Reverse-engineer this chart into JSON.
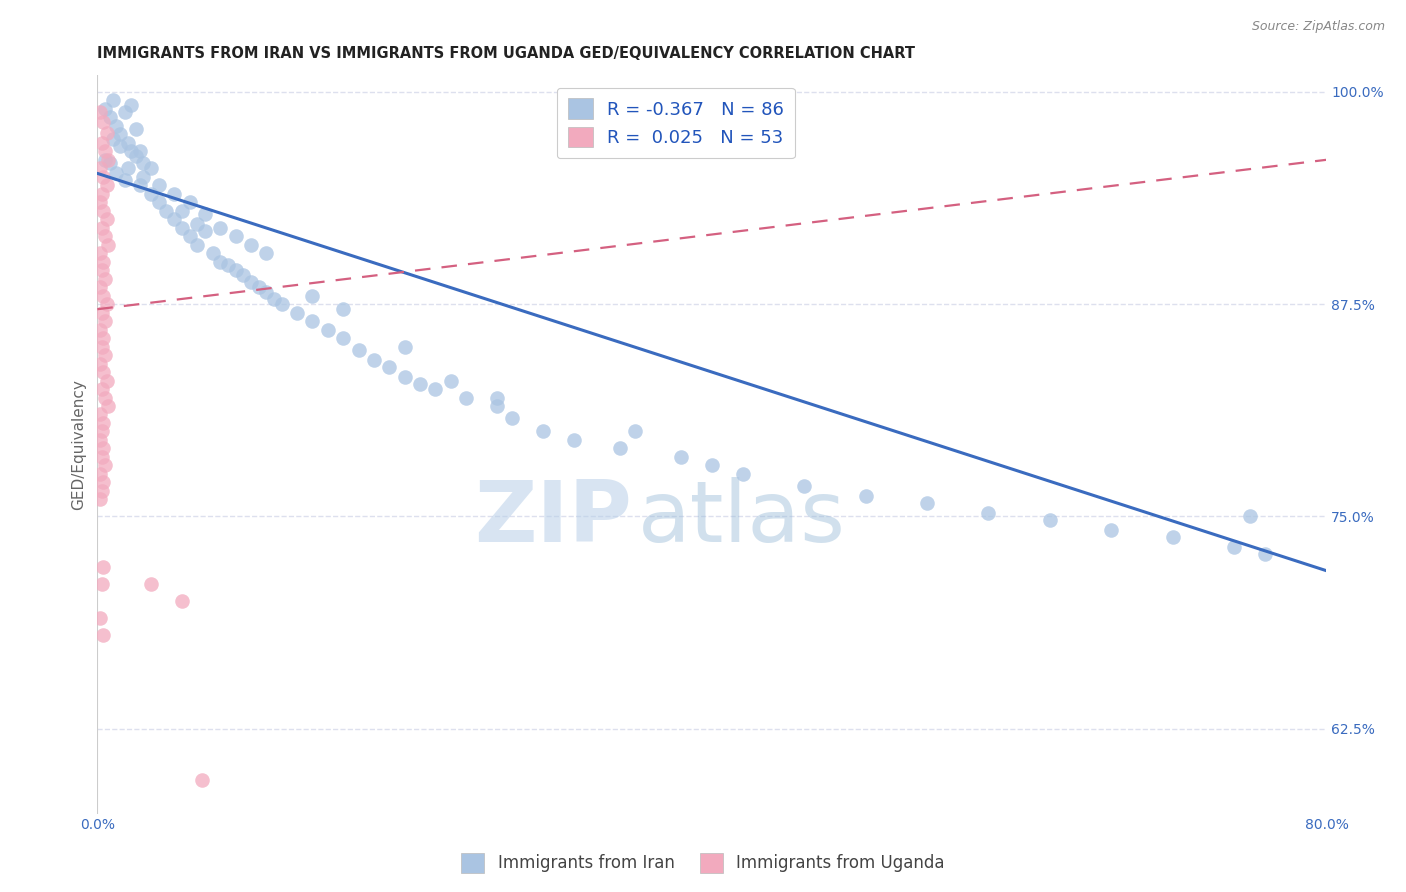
{
  "title": "IMMIGRANTS FROM IRAN VS IMMIGRANTS FROM UGANDA GED/EQUIVALENCY CORRELATION CHART",
  "source": "Source: ZipAtlas.com",
  "ylabel": "GED/Equivalency",
  "xlim": [
    0.0,
    0.8
  ],
  "ylim": [
    0.575,
    1.01
  ],
  "xticks": [
    0.0,
    0.1,
    0.2,
    0.3,
    0.4,
    0.5,
    0.6,
    0.7,
    0.8
  ],
  "yticks": [
    0.625,
    0.75,
    0.875,
    1.0
  ],
  "yticklabels": [
    "62.5%",
    "75.0%",
    "87.5%",
    "100.0%"
  ],
  "blue_color": "#aac4e2",
  "pink_color": "#f2aabe",
  "blue_line_color": "#3a6bbf",
  "pink_line_color": "#d46080",
  "legend_R_iran": "-0.367",
  "legend_N_iran": "86",
  "legend_R_uganda": "0.025",
  "legend_N_uganda": "53",
  "watermark_zip": "ZIP",
  "watermark_atlas": "atlas",
  "iran_x": [
    0.005,
    0.008,
    0.01,
    0.012,
    0.015,
    0.018,
    0.02,
    0.022,
    0.025,
    0.028,
    0.005,
    0.01,
    0.015,
    0.02,
    0.025,
    0.008,
    0.012,
    0.018,
    0.022,
    0.028,
    0.03,
    0.035,
    0.04,
    0.035,
    0.03,
    0.045,
    0.05,
    0.04,
    0.055,
    0.06,
    0.05,
    0.065,
    0.07,
    0.06,
    0.055,
    0.075,
    0.08,
    0.07,
    0.065,
    0.085,
    0.09,
    0.08,
    0.095,
    0.1,
    0.09,
    0.105,
    0.11,
    0.1,
    0.115,
    0.12,
    0.11,
    0.13,
    0.14,
    0.15,
    0.16,
    0.17,
    0.18,
    0.19,
    0.2,
    0.21,
    0.14,
    0.16,
    0.22,
    0.24,
    0.26,
    0.2,
    0.23,
    0.27,
    0.29,
    0.31,
    0.26,
    0.34,
    0.38,
    0.4,
    0.35,
    0.42,
    0.46,
    0.5,
    0.54,
    0.58,
    0.62,
    0.66,
    0.7,
    0.74,
    0.76,
    0.75
  ],
  "iran_y": [
    0.99,
    0.985,
    0.995,
    0.98,
    0.975,
    0.988,
    0.97,
    0.992,
    0.978,
    0.965,
    0.96,
    0.972,
    0.968,
    0.955,
    0.962,
    0.958,
    0.952,
    0.948,
    0.965,
    0.945,
    0.95,
    0.94,
    0.935,
    0.955,
    0.958,
    0.93,
    0.925,
    0.945,
    0.92,
    0.915,
    0.94,
    0.91,
    0.918,
    0.935,
    0.93,
    0.905,
    0.9,
    0.928,
    0.922,
    0.898,
    0.895,
    0.92,
    0.892,
    0.888,
    0.915,
    0.885,
    0.882,
    0.91,
    0.878,
    0.875,
    0.905,
    0.87,
    0.865,
    0.86,
    0.855,
    0.848,
    0.842,
    0.838,
    0.832,
    0.828,
    0.88,
    0.872,
    0.825,
    0.82,
    0.815,
    0.85,
    0.83,
    0.808,
    0.8,
    0.795,
    0.82,
    0.79,
    0.785,
    0.78,
    0.8,
    0.775,
    0.768,
    0.762,
    0.758,
    0.752,
    0.748,
    0.742,
    0.738,
    0.732,
    0.728,
    0.75
  ],
  "uganda_x": [
    0.002,
    0.004,
    0.006,
    0.003,
    0.005,
    0.007,
    0.002,
    0.004,
    0.006,
    0.003,
    0.002,
    0.004,
    0.006,
    0.003,
    0.005,
    0.007,
    0.002,
    0.004,
    0.003,
    0.005,
    0.002,
    0.004,
    0.006,
    0.003,
    0.005,
    0.002,
    0.004,
    0.003,
    0.005,
    0.002,
    0.004,
    0.006,
    0.003,
    0.005,
    0.007,
    0.002,
    0.004,
    0.003,
    0.002,
    0.004,
    0.003,
    0.005,
    0.002,
    0.004,
    0.003,
    0.002,
    0.004,
    0.003,
    0.002,
    0.004,
    0.035,
    0.055,
    0.068
  ],
  "uganda_y": [
    0.988,
    0.982,
    0.976,
    0.97,
    0.965,
    0.96,
    0.955,
    0.95,
    0.945,
    0.94,
    0.935,
    0.93,
    0.925,
    0.92,
    0.915,
    0.91,
    0.905,
    0.9,
    0.895,
    0.89,
    0.885,
    0.88,
    0.875,
    0.87,
    0.865,
    0.86,
    0.855,
    0.85,
    0.845,
    0.84,
    0.835,
    0.83,
    0.825,
    0.82,
    0.815,
    0.81,
    0.805,
    0.8,
    0.795,
    0.79,
    0.785,
    0.78,
    0.775,
    0.77,
    0.765,
    0.76,
    0.72,
    0.71,
    0.69,
    0.68,
    0.71,
    0.7,
    0.595
  ],
  "iran_trendline_x": [
    0.0,
    0.8
  ],
  "iran_trendline_y": [
    0.952,
    0.718
  ],
  "uganda_trendline_x": [
    0.0,
    0.8
  ],
  "uganda_trendline_y": [
    0.872,
    0.96
  ],
  "grid_color": "#dde0ee",
  "background_color": "#ffffff",
  "title_fontsize": 10.5,
  "axis_label_fontsize": 11,
  "tick_fontsize": 10,
  "legend_fontsize": 13
}
